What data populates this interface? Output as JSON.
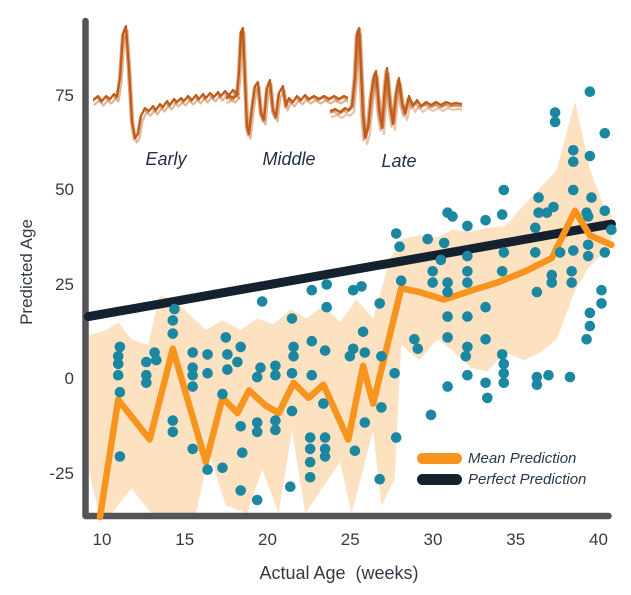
{
  "figure": {
    "y_axis": {
      "label": "Predicted Age",
      "ticks": [
        75,
        50,
        25,
        0,
        -25
      ]
    },
    "x_axis": {
      "label": "Actual Age  (weeks)",
      "ticks": [
        10,
        15,
        20,
        25,
        30,
        35,
        40
      ]
    },
    "legend": [
      {
        "label": "Mean Prediction",
        "color": "#f7941e"
      },
      {
        "label": "Perfect Prediction",
        "color": "#14212f"
      }
    ],
    "insets": [
      {
        "label": "Early"
      },
      {
        "label": "Middle"
      },
      {
        "label": "Late"
      }
    ],
    "colors": {
      "scatter": "#1b87a1",
      "mean_line": "#f7941e",
      "band_fill": "rgba(247,148,30,0.27)",
      "perfect_line": "#14212f",
      "waveform": "#c05a18",
      "axis": "#545456"
    }
  },
  "chart_data": {
    "type": "scatter",
    "title": "",
    "xlabel": "Actual Age (weeks)",
    "ylabel": "Predicted Age",
    "xlim": [
      9.1,
      41
    ],
    "ylim": [
      -37,
      95
    ],
    "grid": false,
    "legend_position": "lower right",
    "series": [
      {
        "name": "Predictions (scatter)",
        "color": "#1b87a1",
        "points": [
          [
            11.1,
            6
          ],
          [
            11.1,
            4
          ],
          [
            11.1,
            1
          ],
          [
            11.2,
            8.5
          ],
          [
            11.2,
            -3.5
          ],
          [
            11.2,
            -20.5
          ],
          [
            12.8,
            4.5
          ],
          [
            12.8,
            1
          ],
          [
            12.8,
            -1
          ],
          [
            13.3,
            7
          ],
          [
            13.4,
            5
          ],
          [
            14.4,
            15.5
          ],
          [
            14.4,
            12
          ],
          [
            14.5,
            18.5
          ],
          [
            14.4,
            -11
          ],
          [
            14.4,
            -14
          ],
          [
            15.6,
            7
          ],
          [
            15.6,
            3
          ],
          [
            15.6,
            1
          ],
          [
            15.6,
            -2
          ],
          [
            15.6,
            -18.5
          ],
          [
            16.5,
            6.5
          ],
          [
            16.5,
            1.5
          ],
          [
            16.5,
            -24
          ],
          [
            17.4,
            -4
          ],
          [
            17.4,
            -23.5
          ],
          [
            17.6,
            11
          ],
          [
            17.7,
            2.5
          ],
          [
            17.7,
            6.5
          ],
          [
            18.3,
            4.5
          ],
          [
            18.5,
            8.5
          ],
          [
            18.5,
            -12.5
          ],
          [
            18.5,
            -29.5
          ],
          [
            18.6,
            -19.5
          ],
          [
            19.5,
            0.5
          ],
          [
            19.5,
            -11.5
          ],
          [
            19.5,
            -14
          ],
          [
            19.5,
            -32
          ],
          [
            19.7,
            3
          ],
          [
            19.8,
            20.5
          ],
          [
            20.6,
            3.5
          ],
          [
            20.6,
            1
          ],
          [
            20.6,
            -11
          ],
          [
            20.6,
            -13.5
          ],
          [
            21.5,
            -28.5
          ],
          [
            21.6,
            16
          ],
          [
            21.6,
            1.5
          ],
          [
            21.6,
            -8.5
          ],
          [
            21.7,
            8.5
          ],
          [
            21.7,
            6
          ],
          [
            22.7,
            -15.5
          ],
          [
            22.7,
            -18.5
          ],
          [
            22.7,
            -22
          ],
          [
            22.7,
            -26
          ],
          [
            22.8,
            23.5
          ],
          [
            22.8,
            10
          ],
          [
            22.8,
            1
          ],
          [
            23.5,
            -6.5
          ],
          [
            23.6,
            7.5
          ],
          [
            23.6,
            -15.5
          ],
          [
            23.6,
            -18.5
          ],
          [
            23.6,
            -20.5
          ],
          [
            23.7,
            25
          ],
          [
            23.7,
            19
          ],
          [
            25.1,
            6
          ],
          [
            25.3,
            23.5
          ],
          [
            25.3,
            8
          ],
          [
            25.4,
            -19
          ],
          [
            25.8,
            24.5
          ],
          [
            25.9,
            12.5
          ],
          [
            26,
            7
          ],
          [
            26,
            -11.5
          ],
          [
            26.9,
            20
          ],
          [
            26.9,
            -26.5
          ],
          [
            27,
            6
          ],
          [
            27,
            -7.5
          ],
          [
            27.8,
            1.5
          ],
          [
            27.9,
            38.5
          ],
          [
            27.9,
            -15.5
          ],
          [
            28.1,
            35
          ],
          [
            28.2,
            26
          ],
          [
            29,
            10.5
          ],
          [
            29.2,
            8
          ],
          [
            29.8,
            37
          ],
          [
            30,
            -9.5
          ],
          [
            30.1,
            28.5
          ],
          [
            30.1,
            25.5
          ],
          [
            30.6,
            31.5
          ],
          [
            30.8,
            36
          ],
          [
            31,
            44
          ],
          [
            31,
            25.5
          ],
          [
            31,
            23
          ],
          [
            31,
            16.5
          ],
          [
            31,
            11
          ],
          [
            31,
            -2
          ],
          [
            31.3,
            43
          ],
          [
            32.1,
            6
          ],
          [
            32.2,
            40.5
          ],
          [
            32.2,
            32.5
          ],
          [
            32.2,
            28.5
          ],
          [
            32.2,
            25.5
          ],
          [
            32.2,
            16.5
          ],
          [
            32.2,
            8.5
          ],
          [
            32.2,
            1
          ],
          [
            33.3,
            42
          ],
          [
            33.3,
            19
          ],
          [
            33.3,
            10.5
          ],
          [
            33.3,
            -1
          ],
          [
            33.4,
            -5
          ],
          [
            34.3,
            43.5
          ],
          [
            34.3,
            28.5
          ],
          [
            34.3,
            6.5
          ],
          [
            34.4,
            50
          ],
          [
            34.4,
            33.5
          ],
          [
            34.4,
            4
          ],
          [
            34.4,
            1.5
          ],
          [
            34.4,
            -1
          ],
          [
            36.3,
            40
          ],
          [
            36.3,
            33.5
          ],
          [
            36.4,
            23
          ],
          [
            36.4,
            0.5
          ],
          [
            36.4,
            -1.5
          ],
          [
            36.5,
            48
          ],
          [
            36.5,
            44
          ],
          [
            37,
            44
          ],
          [
            37.1,
            1
          ],
          [
            37.3,
            27.5
          ],
          [
            37.3,
            25.5
          ],
          [
            37.4,
            45.5
          ],
          [
            37.5,
            70.5
          ],
          [
            37.5,
            68
          ],
          [
            37.8,
            33.5
          ],
          [
            38.4,
            0.5
          ],
          [
            38.5,
            28.5
          ],
          [
            38.5,
            25.5
          ],
          [
            38.6,
            60.5
          ],
          [
            38.6,
            57.5
          ],
          [
            38.6,
            50
          ],
          [
            38.6,
            34
          ],
          [
            39.4,
            44
          ],
          [
            39.4,
            10.5
          ],
          [
            39.5,
            43
          ],
          [
            39.5,
            35.5
          ],
          [
            39.5,
            32.5
          ],
          [
            39.6,
            76
          ],
          [
            39.6,
            59
          ],
          [
            39.7,
            48
          ],
          [
            39.6,
            17.5
          ],
          [
            39.6,
            14
          ],
          [
            40.3,
            23.5
          ],
          [
            40.3,
            20
          ],
          [
            40.5,
            65
          ],
          [
            40.5,
            44.5
          ],
          [
            40.5,
            33.5
          ],
          [
            40.9,
            39.5
          ]
        ]
      },
      {
        "name": "Mean Prediction",
        "color": "#f7941e",
        "points": [
          [
            10,
            -36.5
          ],
          [
            11.1,
            -5.5
          ],
          [
            13,
            -16
          ],
          [
            14.4,
            8
          ],
          [
            16.4,
            -22
          ],
          [
            17.4,
            -5
          ],
          [
            18.3,
            -9
          ],
          [
            19,
            -3
          ],
          [
            20,
            -7
          ],
          [
            20.8,
            -9
          ],
          [
            21.7,
            -1
          ],
          [
            22.6,
            -5
          ],
          [
            23.5,
            -1.5
          ],
          [
            25,
            -16
          ],
          [
            25.9,
            3.5
          ],
          [
            26.5,
            -6.5
          ],
          [
            28.2,
            24
          ],
          [
            29.3,
            23
          ],
          [
            30.8,
            21
          ],
          [
            32.5,
            23.5
          ],
          [
            34,
            25.5
          ],
          [
            35.7,
            28.5
          ],
          [
            37.3,
            32
          ],
          [
            38.7,
            44.5
          ],
          [
            39.6,
            38
          ],
          [
            40.9,
            35.5
          ]
        ]
      },
      {
        "name": "Perfect Prediction",
        "color": "#14212f",
        "points": [
          [
            9.3,
            16.5
          ],
          [
            40.9,
            41
          ]
        ]
      }
    ],
    "band": {
      "name": "Mean prediction uncertainty band",
      "fill": "rgba(247,148,30,0.27)",
      "upper": [
        [
          9.3,
          11.5
        ],
        [
          10.4,
          13
        ],
        [
          11.1,
          15
        ],
        [
          11.9,
          10.5
        ],
        [
          12.9,
          9
        ],
        [
          13.6,
          22
        ],
        [
          14.5,
          21
        ],
        [
          15.4,
          17
        ],
        [
          16.4,
          13
        ],
        [
          17.4,
          15.5
        ],
        [
          18.5,
          13
        ],
        [
          19.5,
          16
        ],
        [
          20.5,
          14.5
        ],
        [
          21.5,
          18.5
        ],
        [
          22.5,
          16
        ],
        [
          23.5,
          19.5
        ],
        [
          24.5,
          15
        ],
        [
          25.5,
          21
        ],
        [
          26.5,
          16
        ],
        [
          27.5,
          31.5
        ],
        [
          28.2,
          37
        ],
        [
          29.3,
          38
        ],
        [
          30.4,
          37.5
        ],
        [
          31.3,
          39.5
        ],
        [
          32.4,
          39
        ],
        [
          33.4,
          40
        ],
        [
          34.5,
          40.5
        ],
        [
          35.6,
          46
        ],
        [
          36.6,
          50.5
        ],
        [
          37.6,
          55.5
        ],
        [
          38.7,
          73.5
        ],
        [
          39.6,
          55.5
        ],
        [
          40.5,
          45
        ],
        [
          40.9,
          43.5
        ]
      ],
      "lower": [
        [
          9.3,
          -24
        ],
        [
          10,
          -36.5
        ],
        [
          10.7,
          -35.5
        ],
        [
          11.9,
          -29
        ],
        [
          13.1,
          -35.5
        ],
        [
          15.8,
          -35.5
        ],
        [
          16.6,
          -19.5
        ],
        [
          17.6,
          -33.5
        ],
        [
          18.9,
          -35.5
        ],
        [
          19.8,
          -24
        ],
        [
          20.8,
          -35.5
        ],
        [
          21.6,
          -13.5
        ],
        [
          22.4,
          -35.5
        ],
        [
          24.5,
          -22
        ],
        [
          25.2,
          -35.5
        ],
        [
          25.9,
          -24
        ],
        [
          26.5,
          -13.5
        ],
        [
          27,
          -33.5
        ],
        [
          27.8,
          -26.5
        ],
        [
          28.2,
          9
        ],
        [
          29.3,
          5
        ],
        [
          30.4,
          10.5
        ],
        [
          31.3,
          7.5
        ],
        [
          32.4,
          3
        ],
        [
          33.4,
          2
        ],
        [
          34.5,
          7
        ],
        [
          35.6,
          5
        ],
        [
          36.6,
          7
        ],
        [
          37.6,
          10.5
        ],
        [
          38.7,
          23.5
        ],
        [
          39.6,
          30
        ],
        [
          40.5,
          33.5
        ],
        [
          40.9,
          34.5
        ]
      ]
    }
  }
}
